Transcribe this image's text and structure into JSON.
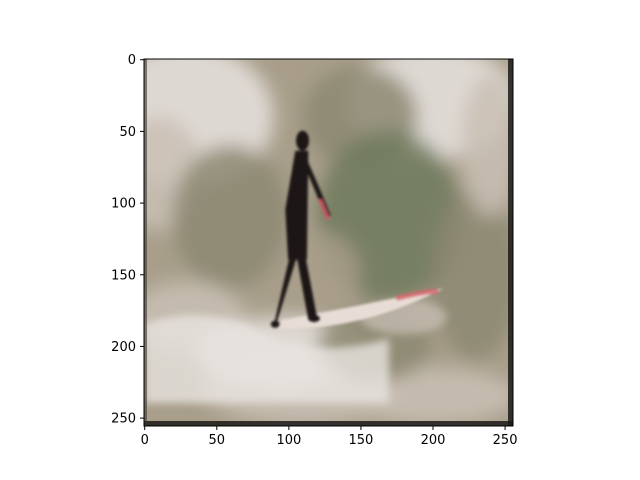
{
  "chart_data": {
    "type": "heatmap",
    "subtype": "image",
    "title": "",
    "xlabel": "",
    "ylabel": "",
    "image_width": 256,
    "image_height": 256,
    "xlim": [
      0,
      256
    ],
    "ylim": [
      256,
      0
    ],
    "y_axis_inverted": true,
    "grid": false,
    "legend": "none",
    "xticks": [
      0,
      50,
      100,
      150,
      200,
      250
    ],
    "yticks": [
      0,
      50,
      100,
      150,
      200,
      250
    ],
    "content": {
      "background_colors": [
        "#dcd6cf",
        "#a89e8a",
        "#8c8872",
        "#6f7a5c",
        "#c9bfb5",
        "#e7e3df"
      ],
      "surfer_color": "#1a1518",
      "board_color": "#e8ddd6",
      "accent_color": "#d9606a",
      "surfer": {
        "x": 110,
        "top_y": 50,
        "feet_y": 186
      },
      "board": {
        "x_start": 92,
        "x_end": 208,
        "y_tail": 188,
        "y_nose": 160
      }
    }
  }
}
